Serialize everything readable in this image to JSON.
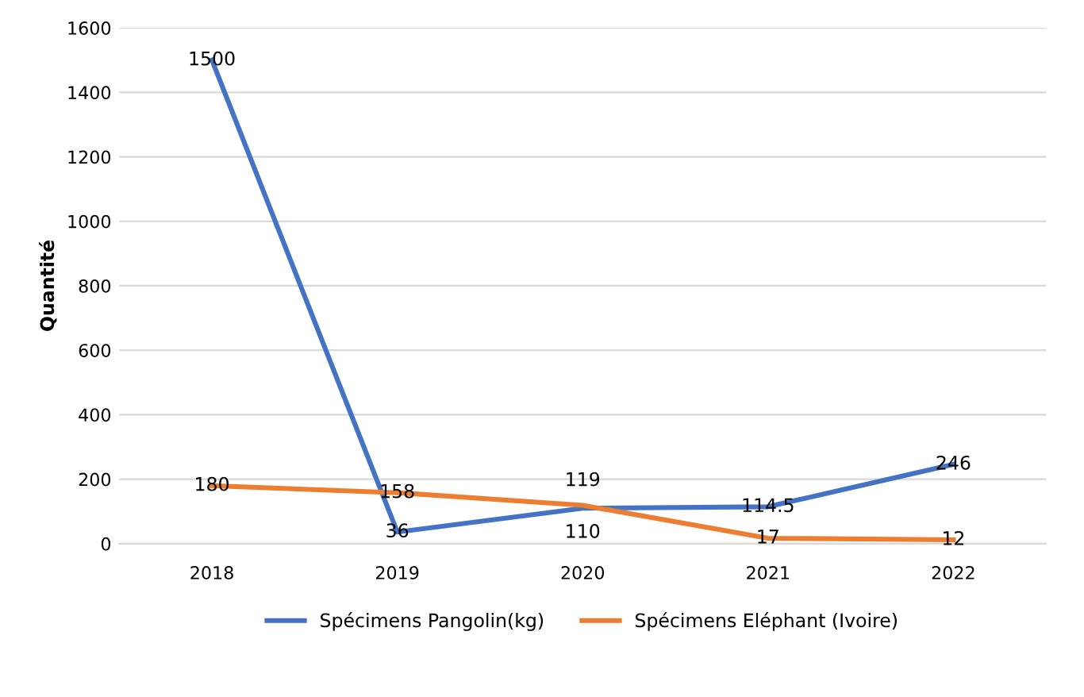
{
  "chart_data": {
    "type": "line",
    "ylabel": "Quantité",
    "categories": [
      "2018",
      "2019",
      "2020",
      "2021",
      "2022"
    ],
    "series": [
      {
        "name": "Spécimens Pangolin(kg)",
        "color": "#4472c4",
        "values": [
          1500,
          36,
          110,
          114.5,
          246
        ]
      },
      {
        "name": "Spécimens Eléphant (Ivoire)",
        "color": "#ed7d31",
        "values": [
          180,
          158,
          119,
          17,
          12
        ]
      }
    ],
    "ylim": [
      0,
      1600
    ],
    "yticks": [
      0,
      200,
      400,
      600,
      800,
      1000,
      1200,
      1400,
      1600
    ],
    "grid": "y",
    "legend": "bottom",
    "data_labels": true,
    "marker": "none",
    "line_style": "solid"
  }
}
